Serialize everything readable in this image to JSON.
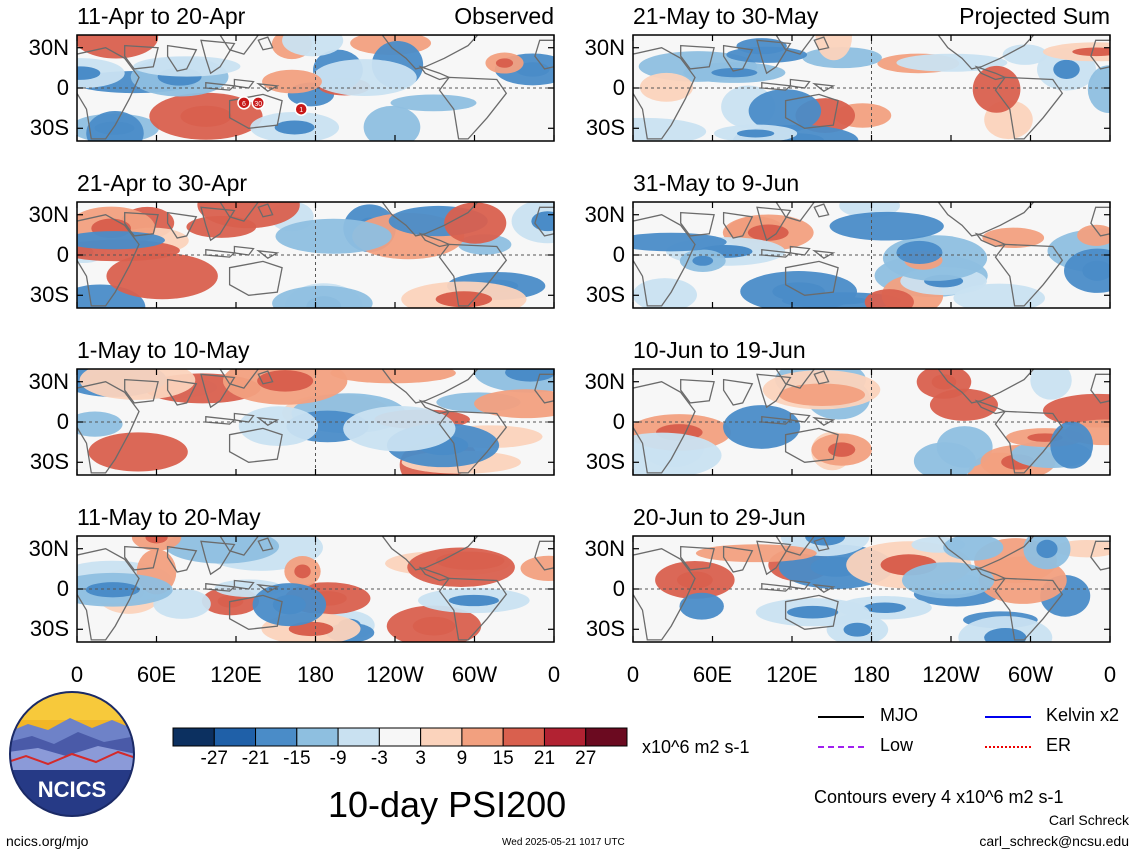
{
  "panels": [
    {
      "id": "p1",
      "title": "11-Apr to 20-Apr",
      "tag": "Observed",
      "column": "left",
      "row": 0,
      "phase_markers": [
        "6",
        "30",
        "1"
      ]
    },
    {
      "id": "p2",
      "title": "21-Apr to 30-Apr",
      "tag": "",
      "column": "left",
      "row": 1
    },
    {
      "id": "p3",
      "title": "1-May to 10-May",
      "tag": "",
      "column": "left",
      "row": 2
    },
    {
      "id": "p4",
      "title": "11-May to 20-May",
      "tag": "",
      "column": "left",
      "row": 3
    },
    {
      "id": "p5",
      "title": "21-May to 30-May",
      "tag": "Projected Sum",
      "column": "right",
      "row": 0
    },
    {
      "id": "p6",
      "title": "31-May to 9-Jun",
      "tag": "",
      "column": "right",
      "row": 1
    },
    {
      "id": "p7",
      "title": "10-Jun to 19-Jun",
      "tag": "",
      "column": "right",
      "row": 2
    },
    {
      "id": "p8",
      "title": "20-Jun to 29-Jun",
      "tag": "",
      "column": "right",
      "row": 3
    }
  ],
  "lat_labels": [
    "30N",
    "0",
    "30S"
  ],
  "lon_labels": [
    "0",
    "60E",
    "120E",
    "180",
    "120W",
    "60W",
    "0"
  ],
  "colorbar": {
    "ticks": [
      "-27",
      "-21",
      "-15",
      "-9",
      "-3",
      "3",
      "9",
      "15",
      "21",
      "27"
    ],
    "colors": [
      "#0c3060",
      "#1f60a8",
      "#4a8cc8",
      "#8ebfe0",
      "#c9e1f1",
      "#f7f7f7",
      "#fbd3bc",
      "#f2a07f",
      "#d9604e",
      "#b22232",
      "#6b0a20"
    ],
    "units": "x10^6 m2 s-1"
  },
  "legend": {
    "mjo": "MJO",
    "kelvin": "Kelvin x2",
    "low": "Low",
    "er": "ER",
    "colors": {
      "mjo": "#000000",
      "kelvin": "#0000ee",
      "low": "#a020f0",
      "er": "#ee0000"
    }
  },
  "contours_note": "Contours every 4 x10^6 m2 s-1",
  "main_title": "10-day PSI200",
  "logo_text": "NCICS",
  "footer": {
    "url": "ncics.org/mjo",
    "timestamp": "Wed 2025-05-21 1017 UTC",
    "author": "Carl Schreck",
    "email": "carl_schreck@ncsu.edu"
  },
  "chart_data": [
    {
      "type": "heatmap",
      "title": "11-Apr to 20-Apr",
      "subtitle": "Observed",
      "field": "PSI200 anomaly",
      "units": "x10^6 m2 s-1",
      "x": [
        "0",
        "60E",
        "120E",
        "180",
        "120W",
        "60W",
        "0"
      ],
      "y": [
        "30N",
        "0",
        "30S"
      ]
    },
    {
      "type": "heatmap",
      "title": "21-Apr to 30-Apr",
      "field": "PSI200 anomaly",
      "units": "x10^6 m2 s-1",
      "x": [
        "0",
        "60E",
        "120E",
        "180",
        "120W",
        "60W",
        "0"
      ],
      "y": [
        "30N",
        "0",
        "30S"
      ]
    },
    {
      "type": "heatmap",
      "title": "1-May to 10-May",
      "field": "PSI200 anomaly",
      "units": "x10^6 m2 s-1",
      "x": [
        "0",
        "60E",
        "120E",
        "180",
        "120W",
        "60W",
        "0"
      ],
      "y": [
        "30N",
        "0",
        "30S"
      ]
    },
    {
      "type": "heatmap",
      "title": "11-May to 20-May",
      "field": "PSI200 anomaly",
      "units": "x10^6 m2 s-1",
      "x": [
        "0",
        "60E",
        "120E",
        "180",
        "120W",
        "60W",
        "0"
      ],
      "y": [
        "30N",
        "0",
        "30S"
      ]
    },
    {
      "type": "heatmap",
      "title": "21-May to 30-May",
      "subtitle": "Projected Sum",
      "field": "PSI200 anomaly",
      "units": "x10^6 m2 s-1",
      "x": [
        "0",
        "60E",
        "120E",
        "180",
        "120W",
        "60W",
        "0"
      ],
      "y": [
        "30N",
        "0",
        "30S"
      ]
    },
    {
      "type": "heatmap",
      "title": "31-May to 9-Jun",
      "field": "PSI200 anomaly",
      "units": "x10^6 m2 s-1",
      "x": [
        "0",
        "60E",
        "120E",
        "180",
        "120W",
        "60W",
        "0"
      ],
      "y": [
        "30N",
        "0",
        "30S"
      ]
    },
    {
      "type": "heatmap",
      "title": "10-Jun to 19-Jun",
      "field": "PSI200 anomaly",
      "units": "x10^6 m2 s-1",
      "x": [
        "0",
        "60E",
        "120E",
        "180",
        "120W",
        "60W",
        "0"
      ],
      "y": [
        "30N",
        "0",
        "30S"
      ]
    },
    {
      "type": "heatmap",
      "title": "20-Jun to 29-Jun",
      "field": "PSI200 anomaly",
      "units": "x10^6 m2 s-1",
      "x": [
        "0",
        "60E",
        "120E",
        "180",
        "120W",
        "60W",
        "0"
      ],
      "y": [
        "30N",
        "0",
        "30S"
      ]
    }
  ]
}
